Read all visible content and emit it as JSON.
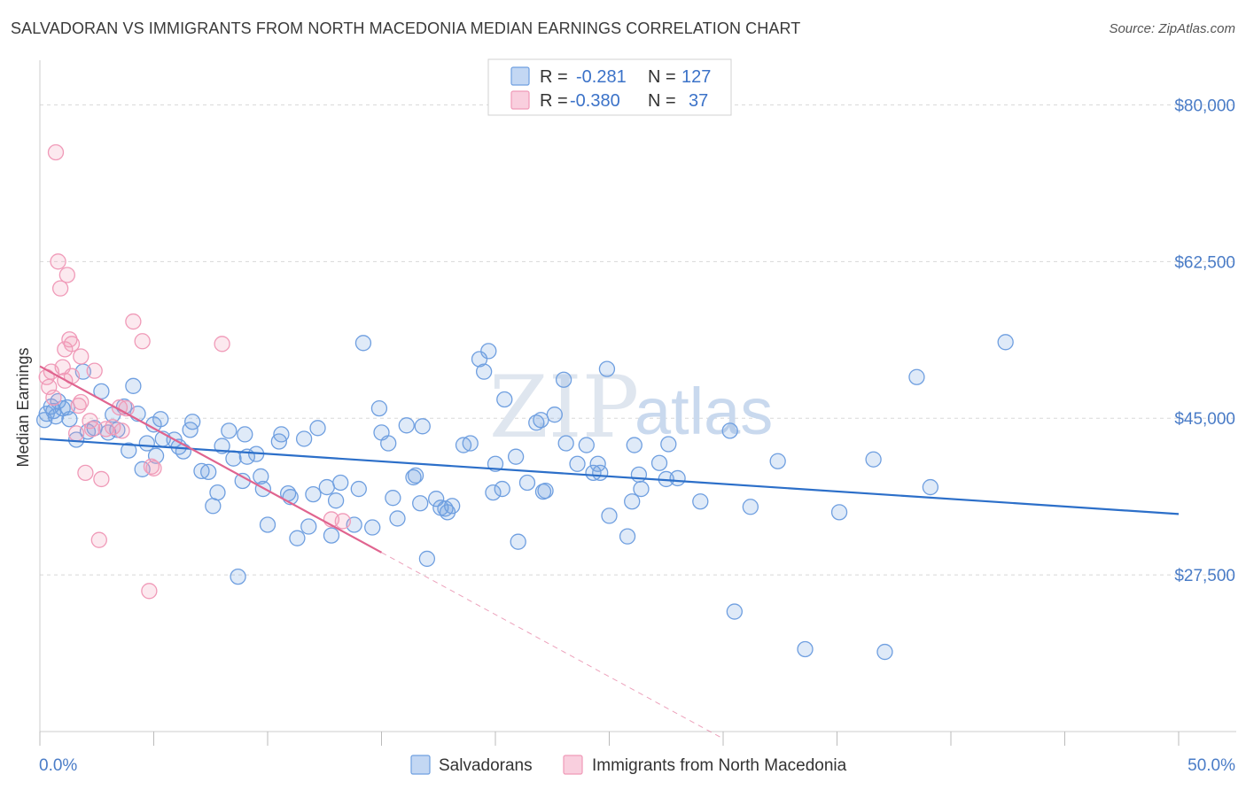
{
  "title": "SALVADORAN VS IMMIGRANTS FROM NORTH MACEDONIA MEDIAN EARNINGS CORRELATION CHART",
  "source": "Source: ZipAtlas.com",
  "colors": {
    "blue": "#6f9fe0",
    "blue_line": "#2c6fc9",
    "pink": "#f09ab8",
    "pink_line": "#e0648f",
    "grid": "#d8d8d8"
  },
  "legend": {
    "row1": {
      "r_label": "R =",
      "r_value": "-0.281",
      "n_label": "N =",
      "n_value": "127"
    },
    "row2": {
      "r_label": "R =",
      "r_value": "-0.380",
      "n_label": "N =",
      "n_value": "37"
    }
  },
  "watermark": {
    "zip": "ZIP",
    "atlas": "atlas"
  },
  "chart_data": {
    "type": "scatter",
    "title": "SALVADORAN VS IMMIGRANTS FROM NORTH MACEDONIA MEDIAN EARNINGS CORRELATION CHART",
    "xlabel": "",
    "ylabel": "Median Earnings",
    "xlim": [
      0,
      50
    ],
    "ylim": [
      10000,
      84000
    ],
    "x_tick_labels": [
      "0.0%",
      "50.0%"
    ],
    "y_ticks": [
      {
        "value": 80000,
        "label": "$80,000"
      },
      {
        "value": 62500,
        "label": "$62,500"
      },
      {
        "value": 45000,
        "label": "$45,000"
      },
      {
        "value": 27500,
        "label": "$27,500"
      }
    ],
    "series": [
      {
        "name": "Salvadorans",
        "color": "#6f9fe0",
        "points": [
          [
            0.3,
            45500
          ],
          [
            0.5,
            46300
          ],
          [
            0.6,
            45800
          ],
          [
            0.7,
            45200
          ],
          [
            0.8,
            46900
          ],
          [
            1.0,
            46100
          ],
          [
            1.2,
            46200
          ],
          [
            1.6,
            42600
          ],
          [
            1.9,
            50200
          ],
          [
            2.4,
            43900
          ],
          [
            2.7,
            48000
          ],
          [
            3.0,
            43400
          ],
          [
            3.2,
            45400
          ],
          [
            3.4,
            43700
          ],
          [
            3.7,
            46300
          ],
          [
            3.9,
            41400
          ],
          [
            4.1,
            48600
          ],
          [
            4.3,
            45500
          ],
          [
            4.5,
            39300
          ],
          [
            4.7,
            42200
          ],
          [
            5.0,
            44300
          ],
          [
            5.1,
            40800
          ],
          [
            5.3,
            44900
          ],
          [
            5.4,
            42700
          ],
          [
            5.9,
            42600
          ],
          [
            6.1,
            41800
          ],
          [
            6.3,
            41300
          ],
          [
            6.6,
            43700
          ],
          [
            6.7,
            44600
          ],
          [
            7.1,
            39100
          ],
          [
            7.4,
            39000
          ],
          [
            7.6,
            35200
          ],
          [
            7.8,
            36700
          ],
          [
            8.0,
            41900
          ],
          [
            8.3,
            43600
          ],
          [
            8.5,
            40500
          ],
          [
            8.7,
            27300
          ],
          [
            8.9,
            38000
          ],
          [
            9.1,
            40700
          ],
          [
            9.5,
            41000
          ],
          [
            9.7,
            38500
          ],
          [
            9.8,
            37100
          ],
          [
            10.0,
            33100
          ],
          [
            10.5,
            42400
          ],
          [
            10.6,
            43200
          ],
          [
            10.9,
            36600
          ],
          [
            11.0,
            36200
          ],
          [
            11.3,
            31600
          ],
          [
            11.6,
            42700
          ],
          [
            11.8,
            32900
          ],
          [
            12.0,
            36500
          ],
          [
            12.2,
            43900
          ],
          [
            12.6,
            37300
          ],
          [
            12.8,
            31900
          ],
          [
            13.0,
            35800
          ],
          [
            13.2,
            37800
          ],
          [
            13.8,
            33100
          ],
          [
            14.0,
            37100
          ],
          [
            14.2,
            53400
          ],
          [
            14.6,
            32800
          ],
          [
            14.9,
            46100
          ],
          [
            15.0,
            43400
          ],
          [
            15.3,
            42200
          ],
          [
            15.5,
            36100
          ],
          [
            15.7,
            33800
          ],
          [
            16.1,
            44200
          ],
          [
            16.4,
            38400
          ],
          [
            16.5,
            38600
          ],
          [
            16.7,
            35500
          ],
          [
            17.0,
            29300
          ],
          [
            17.4,
            36000
          ],
          [
            17.6,
            35000
          ],
          [
            17.9,
            34500
          ],
          [
            17.8,
            34900
          ],
          [
            18.1,
            35200
          ],
          [
            18.6,
            42000
          ],
          [
            18.9,
            42200
          ],
          [
            19.3,
            51600
          ],
          [
            19.5,
            50200
          ],
          [
            19.7,
            52500
          ],
          [
            19.9,
            36700
          ],
          [
            20.0,
            39900
          ],
          [
            20.3,
            37100
          ],
          [
            20.4,
            47100
          ],
          [
            20.9,
            40700
          ],
          [
            21.0,
            31200
          ],
          [
            21.4,
            37800
          ],
          [
            22.0,
            44800
          ],
          [
            21.8,
            44500
          ],
          [
            22.1,
            36800
          ],
          [
            22.2,
            36900
          ],
          [
            22.6,
            45400
          ],
          [
            23.0,
            49300
          ],
          [
            23.1,
            42200
          ],
          [
            23.6,
            39900
          ],
          [
            24.0,
            42000
          ],
          [
            24.3,
            38900
          ],
          [
            24.5,
            39900
          ],
          [
            24.6,
            38900
          ],
          [
            24.9,
            50500
          ],
          [
            25.0,
            34100
          ],
          [
            25.8,
            31800
          ],
          [
            26.0,
            35700
          ],
          [
            26.1,
            42000
          ],
          [
            26.3,
            38700
          ],
          [
            26.4,
            37100
          ],
          [
            27.2,
            40000
          ],
          [
            27.5,
            38200
          ],
          [
            27.6,
            42100
          ],
          [
            28.0,
            38300
          ],
          [
            29.0,
            35700
          ],
          [
            30.3,
            43600
          ],
          [
            30.5,
            23400
          ],
          [
            31.2,
            35100
          ],
          [
            32.4,
            40200
          ],
          [
            33.6,
            19200
          ],
          [
            35.1,
            34500
          ],
          [
            36.6,
            40400
          ],
          [
            37.1,
            18900
          ],
          [
            38.5,
            49600
          ],
          [
            39.1,
            37300
          ],
          [
            42.4,
            53500
          ],
          [
            0.2,
            44800
          ],
          [
            1.3,
            44900
          ],
          [
            2.1,
            43500
          ],
          [
            9.0,
            43200
          ],
          [
            16.8,
            44100
          ]
        ],
        "trend": {
          "x": [
            0,
            50
          ],
          "y": [
            42700,
            34300
          ]
        }
      },
      {
        "name": "Immigrants from North Macedonia",
        "color": "#f09ab8",
        "points": [
          [
            0.3,
            49600
          ],
          [
            0.4,
            48500
          ],
          [
            0.5,
            50200
          ],
          [
            0.6,
            47300
          ],
          [
            0.7,
            74700
          ],
          [
            0.8,
            62500
          ],
          [
            0.9,
            59500
          ],
          [
            1.0,
            50700
          ],
          [
            1.1,
            52700
          ],
          [
            1.1,
            49200
          ],
          [
            1.2,
            61000
          ],
          [
            1.3,
            53800
          ],
          [
            1.4,
            53300
          ],
          [
            1.4,
            49700
          ],
          [
            1.6,
            43300
          ],
          [
            1.7,
            46400
          ],
          [
            1.8,
            46800
          ],
          [
            1.8,
            51900
          ],
          [
            2.0,
            38900
          ],
          [
            2.2,
            44700
          ],
          [
            2.3,
            43800
          ],
          [
            2.4,
            50300
          ],
          [
            2.6,
            31400
          ],
          [
            2.7,
            38200
          ],
          [
            2.9,
            43800
          ],
          [
            3.2,
            44000
          ],
          [
            3.5,
            46200
          ],
          [
            3.8,
            46100
          ],
          [
            3.6,
            43600
          ],
          [
            4.1,
            55800
          ],
          [
            4.5,
            53600
          ],
          [
            4.8,
            25700
          ],
          [
            4.9,
            39600
          ],
          [
            5.0,
            39400
          ],
          [
            8.0,
            53300
          ],
          [
            12.8,
            33700
          ],
          [
            13.3,
            33500
          ]
        ],
        "trend": {
          "x": [
            0,
            15
          ],
          "y": [
            50800,
            30000
          ]
        },
        "trend_extension": {
          "x": [
            15,
            30
          ],
          "y": [
            30000,
            9200
          ]
        }
      }
    ]
  },
  "bottom_legend": {
    "series1": "Salvadorans",
    "series2": "Immigrants from North Macedonia"
  }
}
